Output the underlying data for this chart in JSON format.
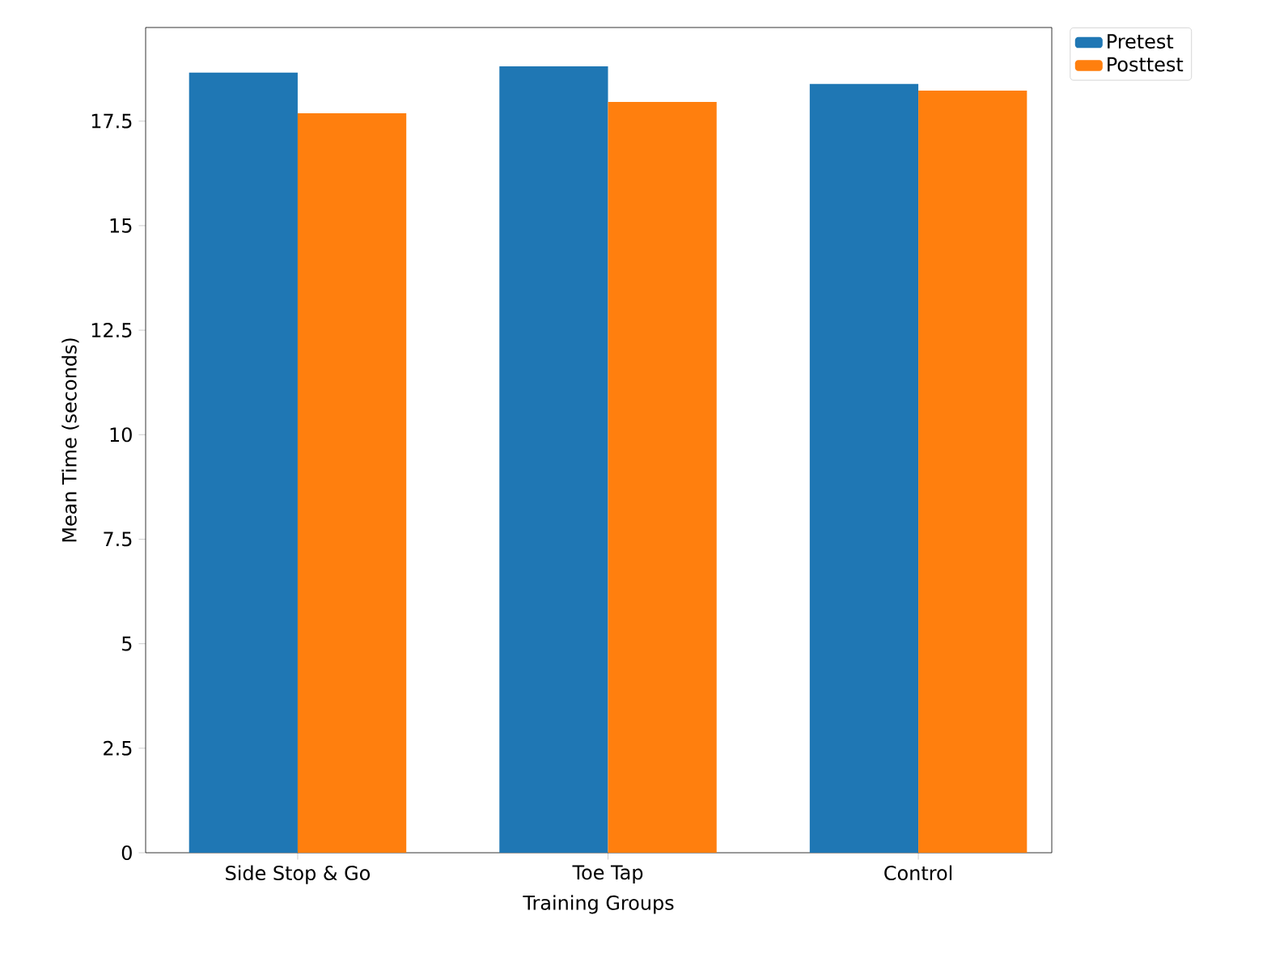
{
  "chart_data": {
    "type": "bar",
    "xlabel": "Training Groups",
    "ylabel": "Mean Time (seconds)",
    "categories": [
      "Side Stop & Go",
      "Toe Tap",
      "Control"
    ],
    "series": [
      {
        "name": "Pretest",
        "color": "#1f77b4",
        "values": [
          18.66,
          18.81,
          18.39
        ]
      },
      {
        "name": "Posttest",
        "color": "#ff7f0e",
        "values": [
          17.69,
          17.96,
          18.23
        ]
      }
    ],
    "ylim": [
      0,
      19.74
    ],
    "yticks": [
      0,
      2.5,
      5,
      7.5,
      10,
      12.5,
      15,
      17.5
    ],
    "legend": "top right",
    "grid": false
  }
}
